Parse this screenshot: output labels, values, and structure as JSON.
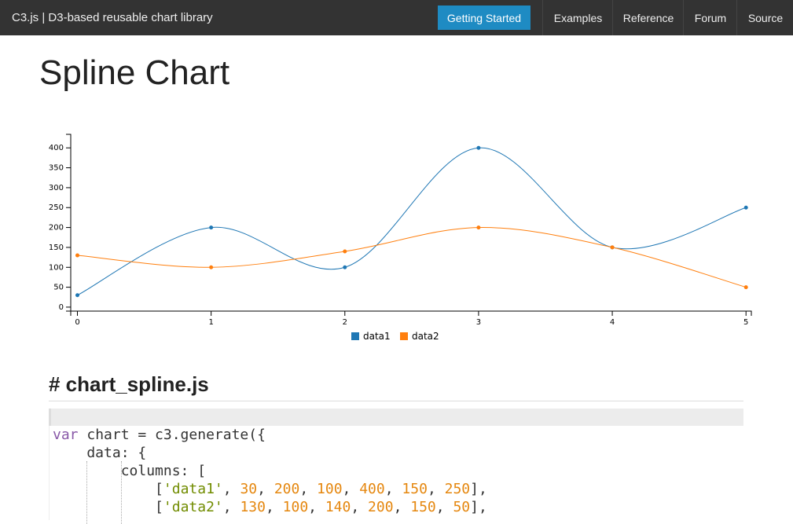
{
  "nav": {
    "brand": "C3.js | D3-based reusable chart library",
    "button": "Getting Started",
    "links": [
      "Examples",
      "Reference",
      "Forum",
      "Source"
    ]
  },
  "page_title": "Spline Chart",
  "chart_data": {
    "type": "line",
    "curve": "spline",
    "x": [
      0,
      1,
      2,
      3,
      4,
      5
    ],
    "series": [
      {
        "name": "data1",
        "color": "#1f77b4",
        "values": [
          30,
          200,
          100,
          400,
          150,
          250
        ]
      },
      {
        "name": "data2",
        "color": "#ff7f0e",
        "values": [
          130,
          100,
          140,
          200,
          150,
          50
        ]
      }
    ],
    "xlim": [
      -0.05,
      5.04
    ],
    "xticks": [
      0,
      1,
      2,
      3,
      4,
      5
    ],
    "ylim": [
      -10,
      434
    ],
    "yticks": [
      0,
      50,
      100,
      150,
      200,
      250,
      300,
      350,
      400
    ],
    "legend": "bottom"
  },
  "code_section": {
    "heading": "# chart_spline.js",
    "lines": [
      [
        {
          "text": "var",
          "color": "#8959a8"
        },
        {
          "text": " chart = c3.generate({",
          "color": "#333333"
        }
      ],
      [
        {
          "text": "    data: {",
          "color": "#333333"
        }
      ],
      [
        {
          "text": "        columns: [",
          "color": "#333333"
        }
      ],
      [
        {
          "text": "            [",
          "color": "#333333"
        },
        {
          "text": "'data1'",
          "color": "#718c00"
        },
        {
          "text": ", ",
          "color": "#333333"
        },
        {
          "text": "30",
          "color": "#e5870f"
        },
        {
          "text": ", ",
          "color": "#333333"
        },
        {
          "text": "200",
          "color": "#e5870f"
        },
        {
          "text": ", ",
          "color": "#333333"
        },
        {
          "text": "100",
          "color": "#e5870f"
        },
        {
          "text": ", ",
          "color": "#333333"
        },
        {
          "text": "400",
          "color": "#e5870f"
        },
        {
          "text": ", ",
          "color": "#333333"
        },
        {
          "text": "150",
          "color": "#e5870f"
        },
        {
          "text": ", ",
          "color": "#333333"
        },
        {
          "text": "250",
          "color": "#e5870f"
        },
        {
          "text": "],",
          "color": "#333333"
        }
      ],
      [
        {
          "text": "            [",
          "color": "#333333"
        },
        {
          "text": "'data2'",
          "color": "#718c00"
        },
        {
          "text": ", ",
          "color": "#333333"
        },
        {
          "text": "130",
          "color": "#e5870f"
        },
        {
          "text": ", ",
          "color": "#333333"
        },
        {
          "text": "100",
          "color": "#e5870f"
        },
        {
          "text": ", ",
          "color": "#333333"
        },
        {
          "text": "140",
          "color": "#e5870f"
        },
        {
          "text": ", ",
          "color": "#333333"
        },
        {
          "text": "200",
          "color": "#e5870f"
        },
        {
          "text": ", ",
          "color": "#333333"
        },
        {
          "text": "150",
          "color": "#e5870f"
        },
        {
          "text": ", ",
          "color": "#333333"
        },
        {
          "text": "50",
          "color": "#e5870f"
        },
        {
          "text": "],",
          "color": "#333333"
        }
      ]
    ]
  }
}
